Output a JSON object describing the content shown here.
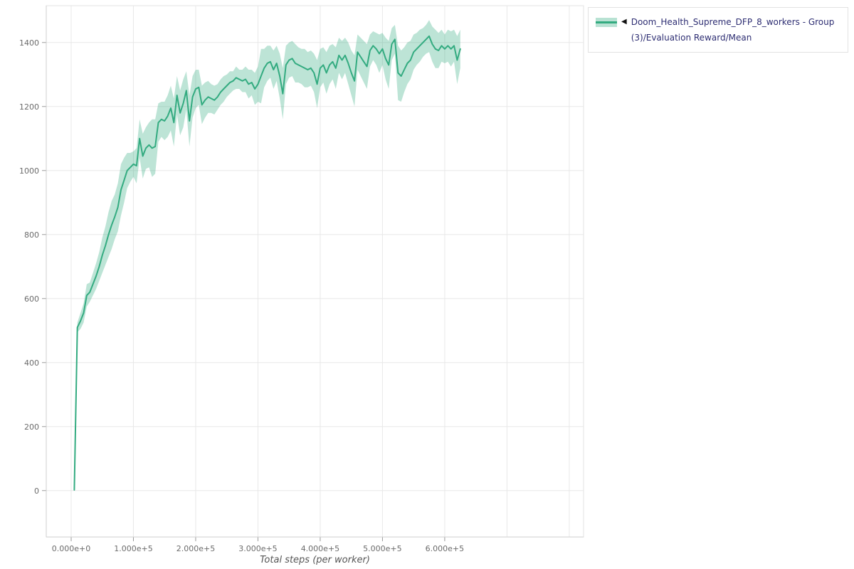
{
  "legend": {
    "marker": "◀",
    "label": "Doom_Health_Supreme_DFP_8_workers - Group(3)/Evaluation Reward/Mean"
  },
  "axes": {
    "x_label": "Total steps (per worker)",
    "x_tick_labels": [
      "0.000e+0",
      "1.000e+5",
      "2.000e+5",
      "3.000e+5",
      "4.000e+5",
      "5.000e+5",
      "6.000e+5"
    ],
    "x_tick_values": [
      0,
      100000,
      200000,
      300000,
      400000,
      500000,
      600000
    ],
    "x_grid_extra": [
      700000,
      800000
    ],
    "y_tick_labels": [
      "0",
      "200",
      "400",
      "600",
      "800",
      "1000",
      "1200",
      "1400"
    ],
    "y_tick_values": [
      0,
      200,
      400,
      600,
      800,
      1000,
      1200,
      1400
    ]
  },
  "colors": {
    "line": "#33ab80",
    "band": "rgba(51,171,128,0.32)",
    "grid": "#e8e8e8",
    "frame": "#e3e3e3",
    "tick": "#9a9a9a"
  },
  "chart_data": {
    "type": "line",
    "title": "",
    "xlabel": "Total steps (per worker)",
    "ylabel": "",
    "xlim": [
      -40000,
      823000
    ],
    "ylim": [
      -145,
      1515
    ],
    "grid": true,
    "legend_position": "top-right",
    "series": [
      {
        "name": "Doom_Health_Supreme_DFP_8_workers - Group(3)/Evaluation Reward/Mean",
        "color": "#33ab80",
        "band": "shaded min/max envelope",
        "x_start": 5000,
        "x_step": 5000,
        "mean": [
          2,
          510,
          530,
          555,
          610,
          620,
          645,
          670,
          700,
          735,
          765,
          800,
          830,
          855,
          885,
          940,
          970,
          1000,
          1010,
          1020,
          1015,
          1100,
          1045,
          1070,
          1080,
          1070,
          1075,
          1150,
          1160,
          1155,
          1170,
          1195,
          1150,
          1235,
          1180,
          1210,
          1250,
          1155,
          1230,
          1255,
          1260,
          1205,
          1220,
          1230,
          1225,
          1220,
          1230,
          1245,
          1255,
          1265,
          1275,
          1280,
          1290,
          1285,
          1280,
          1285,
          1270,
          1275,
          1255,
          1270,
          1295,
          1320,
          1335,
          1340,
          1315,
          1335,
          1295,
          1240,
          1330,
          1345,
          1350,
          1335,
          1330,
          1325,
          1320,
          1315,
          1320,
          1305,
          1270,
          1320,
          1330,
          1305,
          1330,
          1340,
          1320,
          1360,
          1345,
          1360,
          1335,
          1305,
          1280,
          1370,
          1355,
          1340,
          1325,
          1375,
          1390,
          1380,
          1365,
          1380,
          1350,
          1330,
          1395,
          1410,
          1305,
          1295,
          1315,
          1335,
          1345,
          1370,
          1380,
          1390,
          1400,
          1410,
          1420,
          1395,
          1380,
          1375,
          1390,
          1380,
          1390,
          1380,
          1390,
          1345,
          1380
        ],
        "band_halfwidth": [
          5,
          15,
          25,
          30,
          35,
          30,
          35,
          40,
          45,
          55,
          60,
          70,
          75,
          70,
          75,
          80,
          70,
          55,
          45,
          40,
          55,
          60,
          70,
          65,
          70,
          90,
          85,
          60,
          55,
          60,
          65,
          70,
          75,
          60,
          70,
          75,
          60,
          80,
          65,
          60,
          55,
          60,
          55,
          50,
          45,
          45,
          40,
          40,
          40,
          35,
          35,
          30,
          35,
          30,
          35,
          40,
          45,
          40,
          50,
          55,
          85,
          60,
          55,
          50,
          60,
          55,
          70,
          80,
          60,
          55,
          55,
          60,
          55,
          55,
          60,
          55,
          55,
          60,
          75,
          60,
          55,
          65,
          60,
          55,
          65,
          55,
          60,
          55,
          65,
          70,
          80,
          55,
          60,
          65,
          70,
          50,
          45,
          50,
          60,
          50,
          65,
          75,
          50,
          45,
          85,
          80,
          70,
          65,
          60,
          55,
          50,
          50,
          45,
          45,
          50,
          55,
          60,
          55,
          50,
          45,
          50,
          55,
          50,
          75,
          60
        ]
      }
    ]
  }
}
